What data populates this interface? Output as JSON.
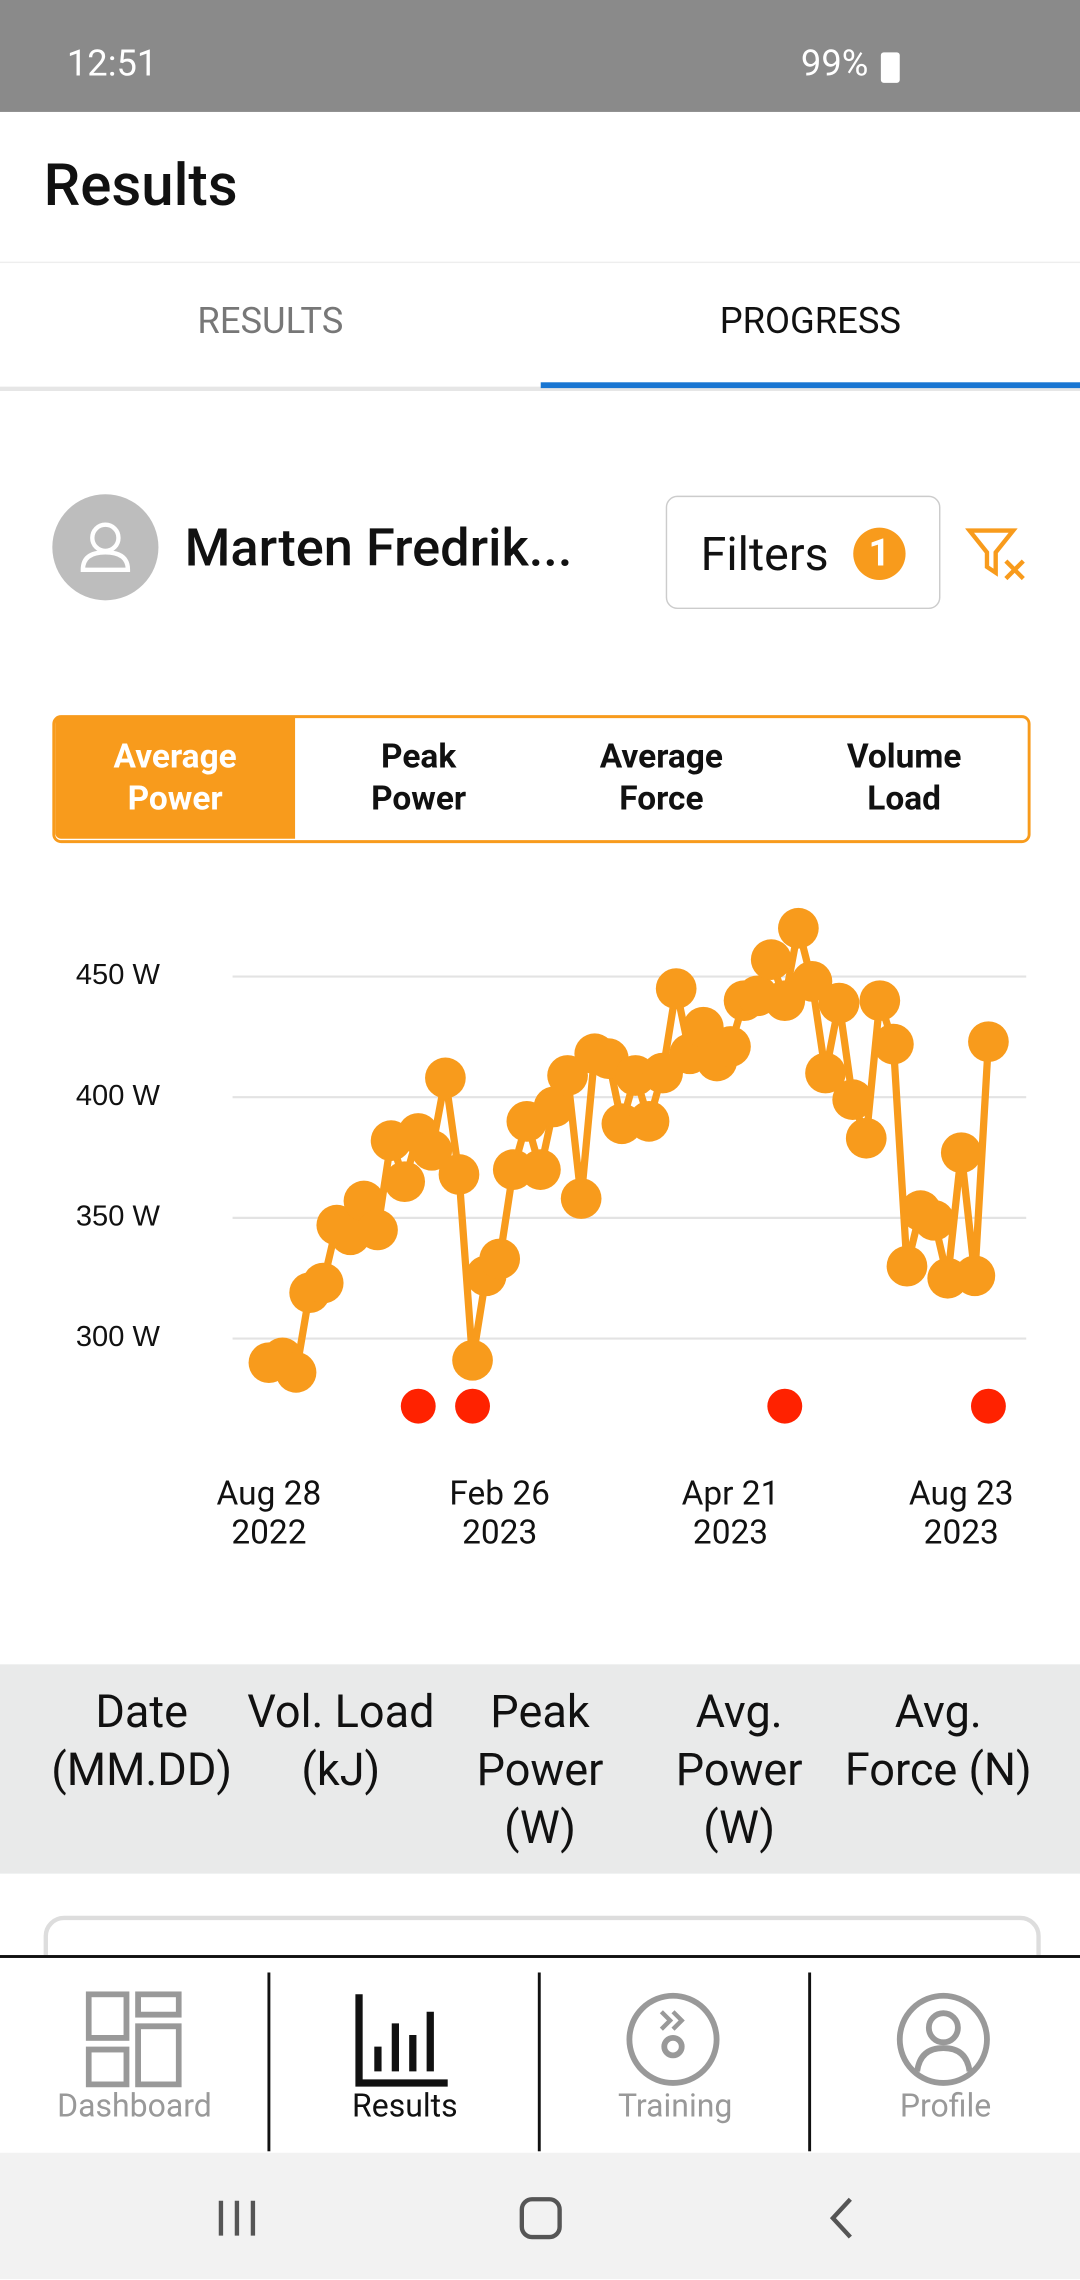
{
  "status_bar": {
    "time": "12:51",
    "battery": "99%"
  },
  "header": {
    "title": "Results"
  },
  "tabs": [
    "RESULTS",
    "PROGRESS"
  ],
  "athlete": {
    "name": "Marten Fredrik..."
  },
  "filters": {
    "label": "Filters",
    "count": 1
  },
  "metric_tabs": [
    "Average\nPower",
    "Peak\nPower",
    "Average\nForce",
    "Volume\nLoad"
  ],
  "chart_data": {
    "type": "line",
    "categories": [
      "Aug 28\n2022",
      null,
      null,
      null,
      null,
      null,
      null,
      null,
      null,
      null,
      null,
      null,
      null,
      null,
      null,
      null,
      null,
      "Feb 26\n2023",
      null,
      null,
      null,
      null,
      null,
      null,
      null,
      null,
      null,
      null,
      null,
      null,
      null,
      null,
      null,
      null,
      "Apr 21\n2023",
      null,
      null,
      null,
      null,
      null,
      null,
      null,
      null,
      null,
      null,
      null,
      null,
      null,
      null,
      null,
      null,
      "Aug 23\n2023",
      null,
      null
    ],
    "series": [
      {
        "color": "#f89b1c",
        "values": [
          290,
          292,
          286,
          319,
          323,
          347,
          343,
          357,
          345,
          382,
          365,
          385,
          378,
          408,
          368,
          291,
          326,
          333,
          370,
          390,
          370,
          396,
          409,
          358,
          418,
          416,
          389,
          409,
          390,
          410,
          445,
          418,
          429,
          415,
          421,
          440,
          442,
          457,
          440,
          470,
          448,
          410,
          439,
          399,
          383,
          440,
          422,
          330,
          353,
          349,
          325,
          377,
          326,
          423
        ]
      },
      {
        "color": "#ff2200",
        "style": "dots",
        "values": [
          null,
          null,
          null,
          null,
          null,
          null,
          null,
          null,
          null,
          null,
          null,
          272,
          null,
          null,
          null,
          272,
          null,
          null,
          null,
          null,
          null,
          null,
          null,
          null,
          null,
          null,
          null,
          null,
          null,
          null,
          null,
          null,
          null,
          null,
          null,
          null,
          null,
          null,
          272,
          null,
          null,
          null,
          null,
          null,
          null,
          null,
          null,
          null,
          null,
          null,
          null,
          null,
          null,
          272
        ]
      }
    ],
    "ylim": [
      265,
      480
    ],
    "yticks": [
      {
        "value": 300,
        "label": "300 W"
      },
      {
        "value": 350,
        "label": "350 W"
      },
      {
        "value": 400,
        "label": "400 W"
      },
      {
        "value": 450,
        "label": "450 W"
      }
    ],
    "grid": true
  },
  "table": {
    "headers": [
      "Date (MM.DD)",
      "Vol. Load (kJ)",
      "Peak Power (W)",
      "Avg. Power (W)",
      "Avg. Force (N)"
    ]
  },
  "nav": [
    "Dashboard",
    "Results",
    "Training",
    "Profile"
  ]
}
